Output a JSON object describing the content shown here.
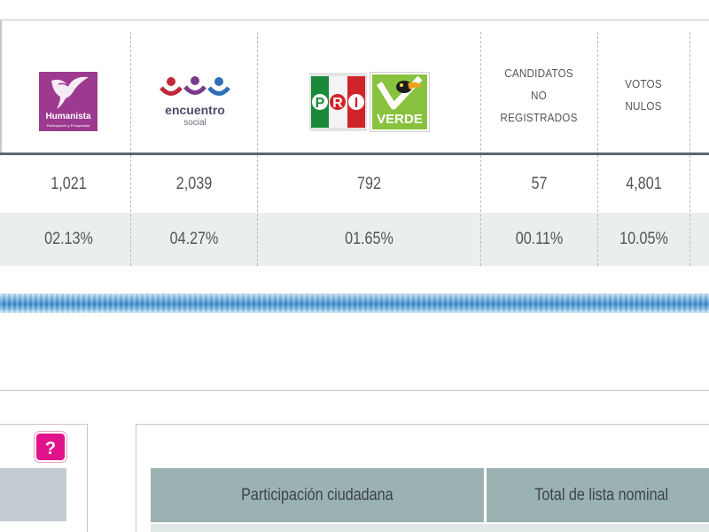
{
  "parties": [
    {
      "id": "humanista",
      "logo_name": "Humanista",
      "logo_sub": "Participación y Prosperidad",
      "votes": "1,021",
      "percent": "02.13%",
      "logo_colors": {
        "bg": "#9b3a8e"
      }
    },
    {
      "id": "encuentro-social",
      "logo_name": "encuentro",
      "logo_sub": "social",
      "votes": "2,039",
      "percent": "04.27%",
      "logo_colors": {
        "dots": [
          "#c0283a",
          "#7a3a8c",
          "#2e6fb7"
        ]
      }
    },
    {
      "id": "pri-verde",
      "logo_pri_letters": [
        "P",
        "R",
        "I"
      ],
      "logo_verde": "VERDE",
      "votes": "792",
      "percent": "01.65%",
      "logo_colors": {
        "pri_green": "#1a8a3a",
        "pri_red": "#d1232a",
        "verde": "#88c23f"
      }
    },
    {
      "id": "candidatos-no-registrados",
      "header_lines": [
        "CANDIDATOS",
        "NO",
        "REGISTRADOS"
      ],
      "votes": "57",
      "percent": "00.11%"
    },
    {
      "id": "votos-nulos",
      "header_lines": [
        "VOTOS",
        "NULOS"
      ],
      "votes": "4,801",
      "percent": "10.05%"
    }
  ],
  "help_button": {
    "label": "?",
    "color": "#e0138c"
  },
  "table": {
    "headers": [
      "Participación ciudadana",
      "Total de lista nominal"
    ]
  },
  "colors": {
    "header_divider": "#5a6672",
    "percent_row_bg": "#ebeeef",
    "table_header_bg": "#9bb2b2",
    "blue_bar": "#3a88cc"
  }
}
